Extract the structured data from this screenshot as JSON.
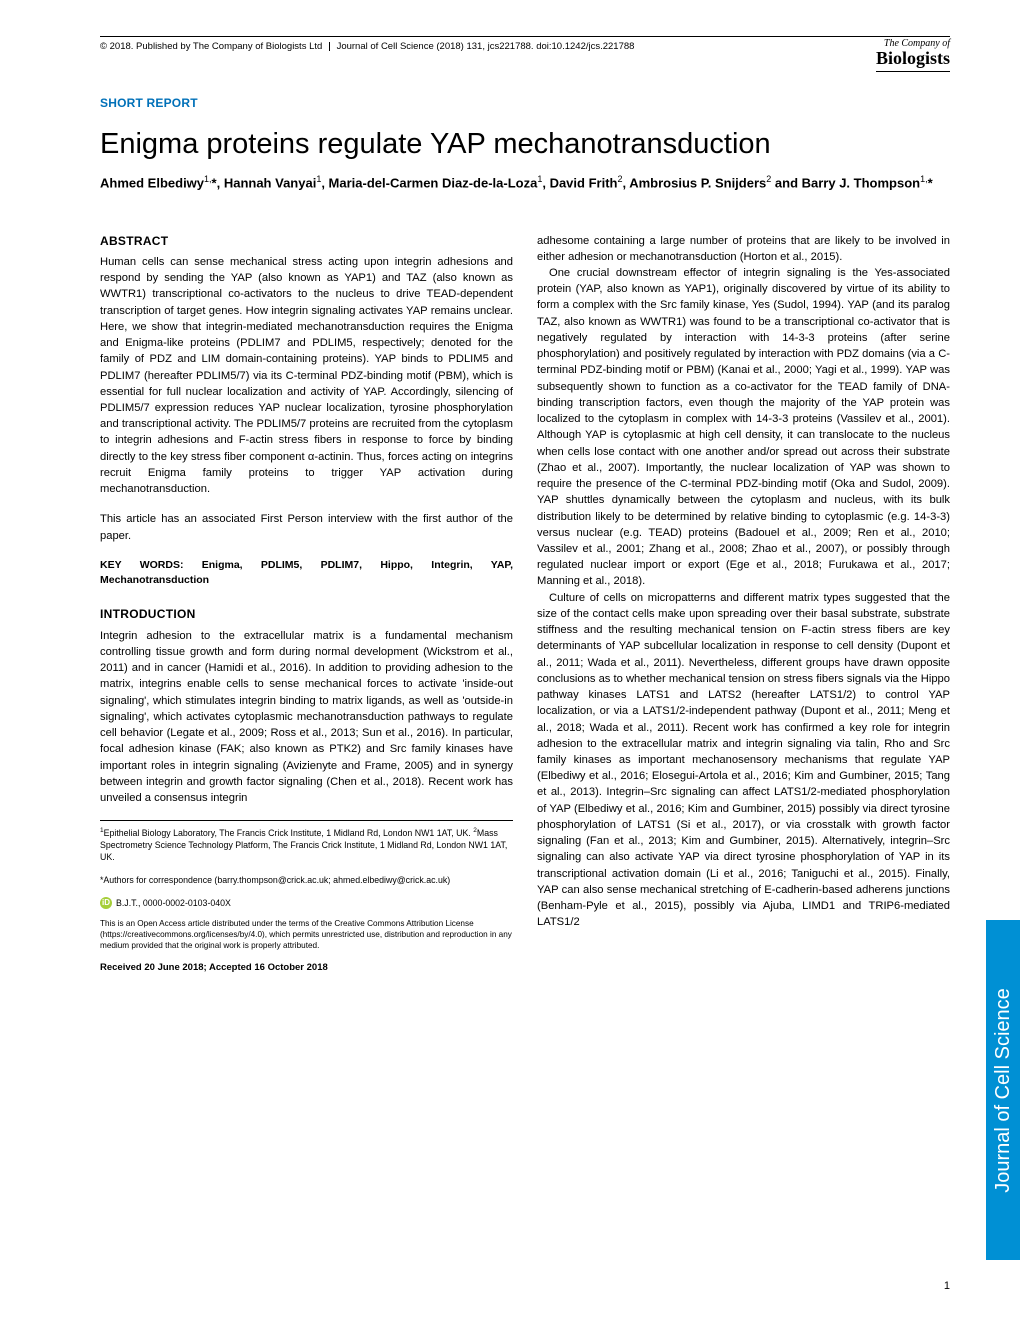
{
  "header": {
    "copyright": "© 2018. Published by The Company of Biologists Ltd",
    "journal": "Journal of Cell Science (2018) 131, jcs221788. doi:10.1242/jcs.221788",
    "logo_top": "The Company of",
    "logo_bottom": "Biologists"
  },
  "section_label": "SHORT REPORT",
  "title": "Enigma proteins regulate YAP mechanotransduction",
  "authors_html": "Ahmed Elbediwy<sup>1,</sup>*, Hannah Vanyai<sup>1</sup>, Maria-del-Carmen Diaz-de-la-Loza<sup>1</sup>, David Frith<sup>2</sup>, Ambrosius P. Snijders<sup>2</sup> and Barry J. Thompson<sup>1,</sup>*",
  "abstract_heading": "ABSTRACT",
  "abstract": "Human cells can sense mechanical stress acting upon integrin adhesions and respond by sending the YAP (also known as YAP1) and TAZ (also known as WWTR1) transcriptional co-activators to the nucleus to drive TEAD-dependent transcription of target genes. How integrin signaling activates YAP remains unclear. Here, we show that integrin-mediated mechanotransduction requires the Enigma and Enigma-like proteins (PDLIM7 and PDLIM5, respectively; denoted for the family of PDZ and LIM domain-containing proteins). YAP binds to PDLIM5 and PDLIM7 (hereafter PDLIM5/7) via its C-terminal PDZ-binding motif (PBM), which is essential for full nuclear localization and activity of YAP. Accordingly, silencing of PDLIM5/7 expression reduces YAP nuclear localization, tyrosine phosphorylation and transcriptional activity. The PDLIM5/7 proteins are recruited from the cytoplasm to integrin adhesions and F-actin stress fibers in response to force by binding directly to the key stress fiber component α-actinin. Thus, forces acting on integrins recruit Enigma family proteins to trigger YAP activation during mechanotransduction.",
  "first_person": "This article has an associated First Person interview with the first author of the paper.",
  "keywords": "KEY WORDS: Enigma, PDLIM5, PDLIM7, Hippo, Integrin, YAP, Mechanotransduction",
  "intro_heading": "INTRODUCTION",
  "intro_p1": "Integrin adhesion to the extracellular matrix is a fundamental mechanism controlling tissue growth and form during normal development (Wickstrom et al., 2011) and in cancer (Hamidi et al., 2016). In addition to providing adhesion to the matrix, integrins enable cells to sense mechanical forces to activate 'inside-out signaling', which stimulates integrin binding to matrix ligands, as well as 'outside-in signaling', which activates cytoplasmic mechanotransduction pathways to regulate cell behavior (Legate et al., 2009; Ross et al., 2013; Sun et al., 2016). In particular, focal adhesion kinase (FAK; also known as PTK2) and Src family kinases have important roles in integrin signaling (Avizienyte and Frame, 2005) and in synergy between integrin and growth factor signaling (Chen et al., 2018). Recent work has unveiled a consensus integrin",
  "right_p1": "adhesome containing a large number of proteins that are likely to be involved in either adhesion or mechanotransduction (Horton et al., 2015).",
  "right_p2": "One crucial downstream effector of integrin signaling is the Yes-associated protein (YAP, also known as YAP1), originally discovered by virtue of its ability to form a complex with the Src family kinase, Yes (Sudol, 1994). YAP (and its paralog TAZ, also known as WWTR1) was found to be a transcriptional co-activator that is negatively regulated by interaction with 14-3-3 proteins (after serine phosphorylation) and positively regulated by interaction with PDZ domains (via a C-terminal PDZ-binding motif or PBM) (Kanai et al., 2000; Yagi et al., 1999). YAP was subsequently shown to function as a co-activator for the TEAD family of DNA-binding transcription factors, even though the majority of the YAP protein was localized to the cytoplasm in complex with 14-3-3 proteins (Vassilev et al., 2001). Although YAP is cytoplasmic at high cell density, it can translocate to the nucleus when cells lose contact with one another and/or spread out across their substrate (Zhao et al., 2007). Importantly, the nuclear localization of YAP was shown to require the presence of the C-terminal PDZ-binding motif (Oka and Sudol, 2009). YAP shuttles dynamically between the cytoplasm and nucleus, with its bulk distribution likely to be determined by relative binding to cytoplasmic (e.g. 14-3-3) versus nuclear (e.g. TEAD) proteins (Badouel et al., 2009; Ren et al., 2010; Vassilev et al., 2001; Zhang et al., 2008; Zhao et al., 2007), or possibly through regulated nuclear import or export (Ege et al., 2018; Furukawa et al., 2017; Manning et al., 2018).",
  "right_p3": "Culture of cells on micropatterns and different matrix types suggested that the size of the contact cells make upon spreading over their basal substrate, substrate stiffness and the resulting mechanical tension on F-actin stress fibers are key determinants of YAP subcellular localization in response to cell density (Dupont et al., 2011; Wada et al., 2011). Nevertheless, different groups have drawn opposite conclusions as to whether mechanical tension on stress fibers signals via the Hippo pathway kinases LATS1 and LATS2 (hereafter LATS1/2) to control YAP localization, or via a LATS1/2-independent pathway (Dupont et al., 2011; Meng et al., 2018; Wada et al., 2011). Recent work has confirmed a key role for integrin adhesion to the extracellular matrix and integrin signaling via talin, Rho and Src family kinases as important mechanosensory mechanisms that regulate YAP (Elbediwy et al., 2016; Elosegui-Artola et al., 2016; Kim and Gumbiner, 2015; Tang et al., 2013). Integrin–Src signaling can affect LATS1/2-mediated phosphorylation of YAP (Elbediwy et al., 2016; Kim and Gumbiner, 2015) possibly via direct tyrosine phosphorylation of LATS1 (Si et al., 2017), or via crosstalk with growth factor signaling (Fan et al., 2013; Kim and Gumbiner, 2015). Alternatively, integrin–Src signaling can also activate YAP via direct tyrosine phosphorylation of YAP in its transcriptional activation domain (Li et al., 2016; Taniguchi et al., 2015). Finally, YAP can also sense mechanical stretching of E-cadherin-based adherens junctions (Benham-Pyle et al., 2015), possibly via Ajuba, LIMD1 and TRIP6-mediated LATS1/2",
  "affiliations": "¹Epithelial Biology Laboratory, The Francis Crick Institute, 1 Midland Rd, London NW1 1AT, UK. ²Mass Spectrometry Science Technology Platform, The Francis Crick Institute, 1 Midland Rd, London NW1 1AT, UK.",
  "correspondence": "*Authors for correspondence (barry.thompson@crick.ac.uk; ahmed.elbediwy@crick.ac.uk)",
  "orcid": "B.J.T., 0000-0002-0103-040X",
  "license": "This is an Open Access article distributed under the terms of the Creative Commons Attribution License (https://creativecommons.org/licenses/by/4.0), which permits unrestricted use, distribution and reproduction in any medium provided that the original work is properly attributed.",
  "dates": "Received 20 June 2018; Accepted 16 October 2018",
  "side_tab": "Journal of Cell Science",
  "page_num": "1",
  "colors": {
    "accent_blue": "#0070b8",
    "tab_blue": "#0090d4",
    "orcid_green": "#a6ce39"
  }
}
